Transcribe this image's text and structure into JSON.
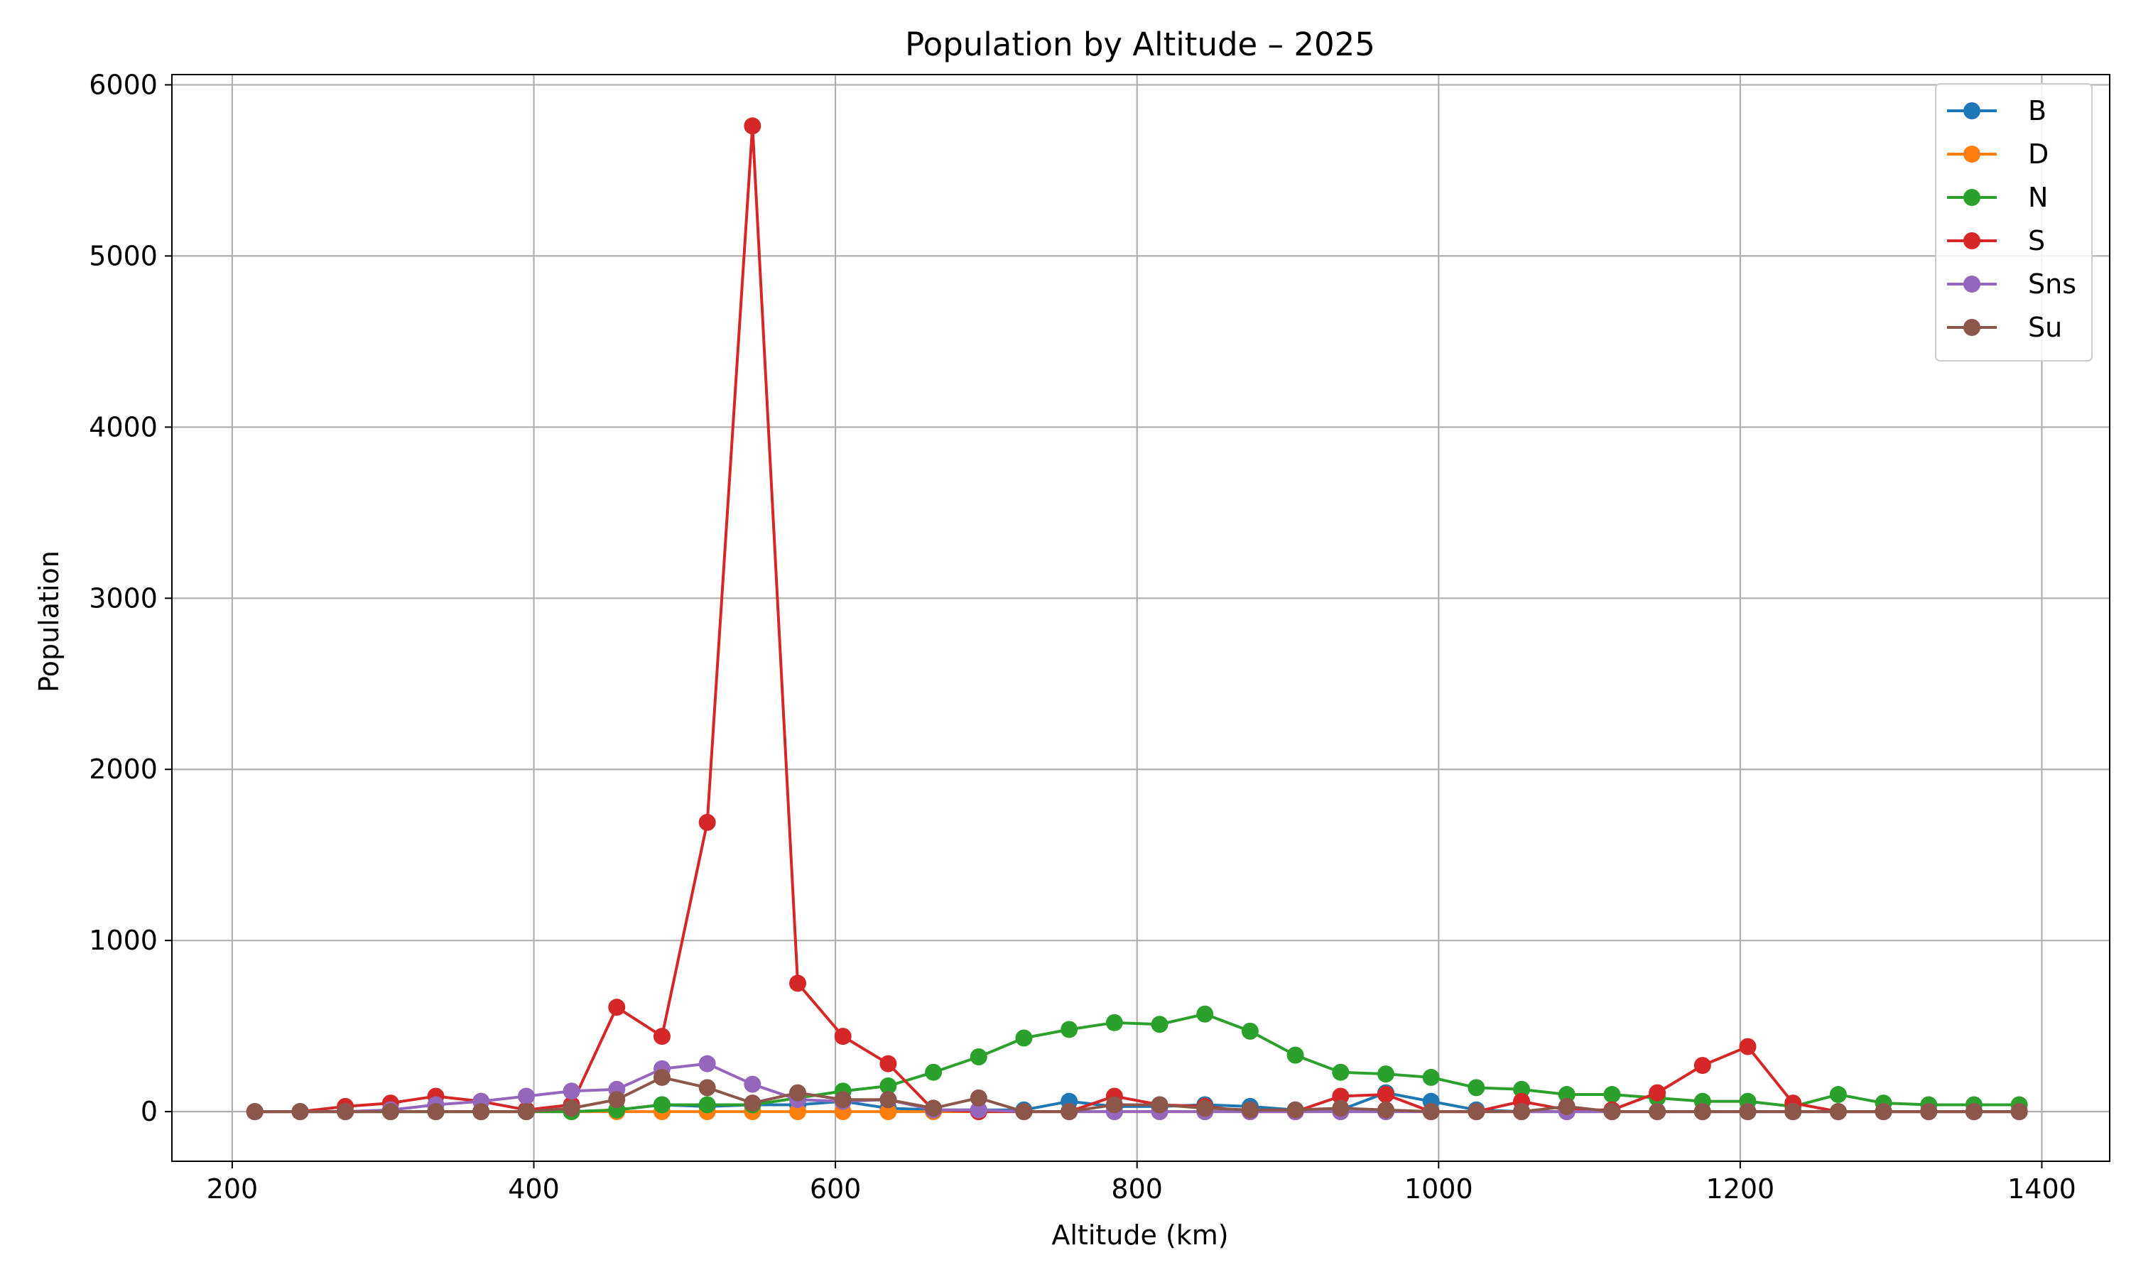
{
  "chart_data": {
    "type": "line",
    "title": "Population by Altitude – 2025",
    "xlabel": "Altitude (km)",
    "ylabel": "Population",
    "xlim": [
      160,
      1445
    ],
    "ylim": [
      -290,
      6060
    ],
    "xticks": [
      200,
      400,
      600,
      800,
      1000,
      1200,
      1400
    ],
    "yticks": [
      0,
      1000,
      2000,
      3000,
      4000,
      5000,
      6000
    ],
    "grid": true,
    "legend_position": "top-right",
    "x": [
      215,
      245,
      275,
      305,
      335,
      365,
      395,
      425,
      455,
      485,
      515,
      545,
      575,
      605,
      635,
      665,
      695,
      725,
      755,
      785,
      815,
      845,
      875,
      905,
      935,
      965,
      995,
      1025,
      1055,
      1085,
      1115,
      1145,
      1175,
      1205,
      1235,
      1265,
      1295,
      1325,
      1355,
      1385
    ],
    "series": [
      {
        "name": "B",
        "color": "#1f77b4",
        "values": [
          0,
          0,
          0,
          0,
          0,
          0,
          0,
          0,
          10,
          40,
          30,
          40,
          40,
          60,
          20,
          10,
          10,
          10,
          60,
          30,
          30,
          40,
          30,
          10,
          10,
          110,
          60,
          10,
          0,
          0,
          0,
          0,
          0,
          0,
          0,
          0,
          0,
          0,
          0,
          0
        ]
      },
      {
        "name": "D",
        "color": "#ff7f0e",
        "values": [
          0,
          0,
          0,
          0,
          0,
          0,
          0,
          0,
          0,
          0,
          0,
          0,
          0,
          0,
          0,
          0,
          0,
          0,
          0,
          0,
          0,
          0,
          0,
          0,
          0,
          0,
          0,
          0,
          0,
          0,
          0,
          0,
          0,
          0,
          0,
          0,
          0,
          0,
          0,
          0
        ]
      },
      {
        "name": "N",
        "color": "#2ca02c",
        "values": [
          0,
          0,
          0,
          0,
          0,
          0,
          0,
          0,
          10,
          40,
          40,
          40,
          80,
          120,
          150,
          230,
          320,
          430,
          480,
          520,
          510,
          570,
          470,
          330,
          230,
          220,
          200,
          140,
          130,
          100,
          100,
          80,
          60,
          60,
          30,
          100,
          50,
          40,
          40,
          40
        ]
      },
      {
        "name": "S",
        "color": "#d62728",
        "values": [
          0,
          0,
          30,
          50,
          90,
          60,
          10,
          40,
          610,
          440,
          1690,
          5760,
          750,
          440,
          280,
          10,
          0,
          0,
          0,
          90,
          40,
          30,
          0,
          0,
          90,
          100,
          0,
          0,
          60,
          10,
          10,
          110,
          270,
          380,
          50,
          0,
          0,
          0,
          0,
          0
        ]
      },
      {
        "name": "Sns",
        "color": "#9467bd",
        "values": [
          0,
          0,
          0,
          10,
          40,
          60,
          90,
          120,
          130,
          250,
          280,
          160,
          70,
          60,
          70,
          10,
          10,
          0,
          0,
          0,
          0,
          0,
          0,
          0,
          0,
          0,
          0,
          0,
          0,
          0,
          0,
          0,
          0,
          0,
          0,
          0,
          0,
          0,
          0,
          0
        ]
      },
      {
        "name": "Su",
        "color": "#8c564b",
        "values": [
          0,
          0,
          0,
          0,
          0,
          0,
          0,
          20,
          70,
          200,
          140,
          50,
          110,
          70,
          70,
          20,
          80,
          0,
          0,
          40,
          40,
          20,
          10,
          10,
          20,
          10,
          0,
          0,
          0,
          30,
          0,
          0,
          0,
          0,
          0,
          0,
          0,
          0,
          0,
          0
        ]
      }
    ]
  }
}
